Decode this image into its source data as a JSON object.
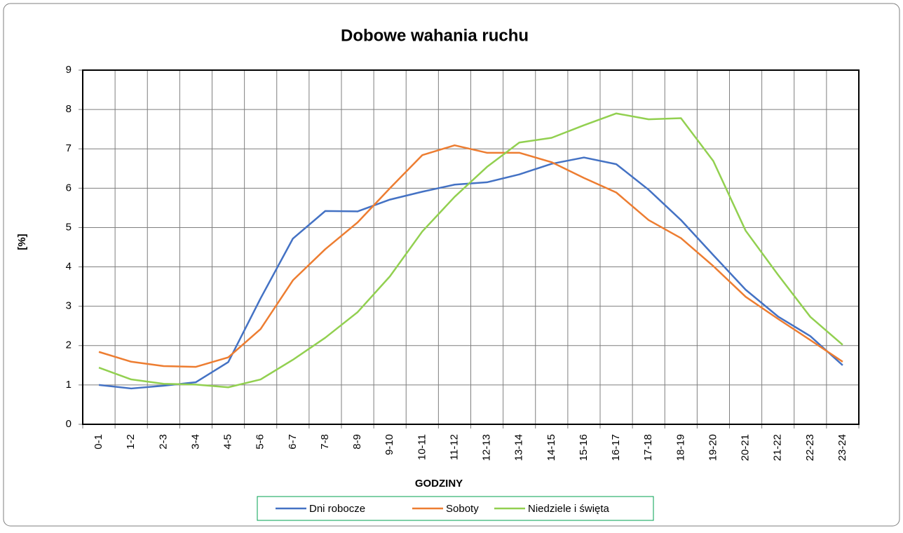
{
  "chart_data": {
    "type": "line",
    "title": "Dobowe wahania ruchu",
    "x_label": "GODZINY",
    "y_label": "[%]",
    "categories": [
      "0-1",
      "1-2",
      "2-3",
      "3-4",
      "4-5",
      "5-6",
      "6-7",
      "7-8",
      "8-9",
      "9-10",
      "10-11",
      "11-12",
      "12-13",
      "13-14",
      "14-15",
      "15-16",
      "16-17",
      "17-18",
      "18-19",
      "19-20",
      "20-21",
      "21-22",
      "22-23",
      "23-24"
    ],
    "series": [
      {
        "name": "Dni robocze",
        "color": "#4472c4",
        "values": [
          1.0,
          0.91,
          0.98,
          1.07,
          1.58,
          3.2,
          4.72,
          5.42,
          5.41,
          5.71,
          5.91,
          6.09,
          6.15,
          6.35,
          6.62,
          6.78,
          6.61,
          5.96,
          5.19,
          4.3,
          3.42,
          2.74,
          2.24,
          1.5
        ]
      },
      {
        "name": "Soboty",
        "color": "#ed7d31",
        "values": [
          1.84,
          1.59,
          1.48,
          1.46,
          1.7,
          2.42,
          3.66,
          4.45,
          5.13,
          6.0,
          6.84,
          7.09,
          6.9,
          6.9,
          6.66,
          6.26,
          5.89,
          5.19,
          4.73,
          4.02,
          3.24,
          2.68,
          2.14,
          1.59
        ]
      },
      {
        "name": "Niedziele i święta",
        "color": "#92d050",
        "values": [
          1.44,
          1.14,
          1.03,
          1.01,
          0.94,
          1.14,
          1.64,
          2.2,
          2.85,
          3.76,
          4.9,
          5.78,
          6.54,
          7.16,
          7.28,
          7.6,
          7.9,
          7.75,
          7.78,
          6.69,
          4.92,
          3.8,
          2.73,
          2.02
        ]
      }
    ],
    "ylim": [
      0,
      9
    ],
    "yticks": [
      0,
      1,
      2,
      3,
      4,
      5,
      6,
      7,
      8,
      9
    ],
    "grid": true,
    "legend": "bottom"
  }
}
